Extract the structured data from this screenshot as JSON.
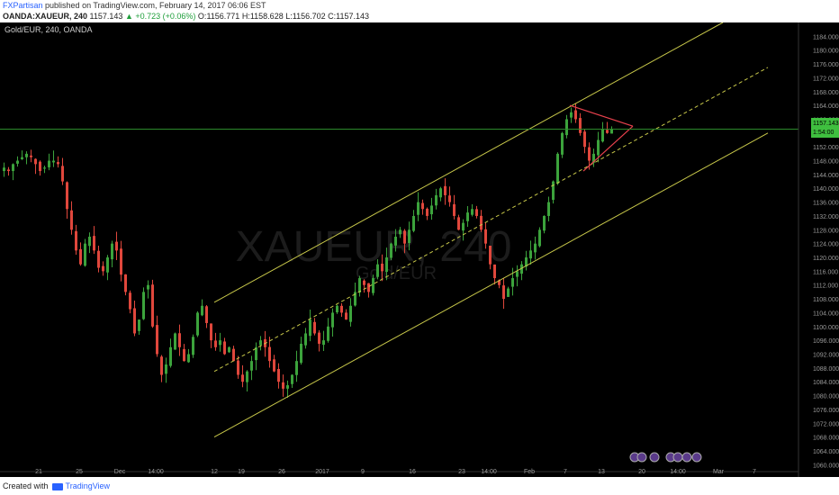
{
  "header": {
    "author": "FXPartisan",
    "published_text": " published on TradingView.com, February 14, 2017 06:06 EST",
    "symbol": "OANDA:XAUEUR, 240",
    "last_price": "1157.143",
    "change": "▲ +0.723 (+0.06%)",
    "o_label": "O:",
    "o": "1156.771",
    "h_label": "H:",
    "h": "1158.628",
    "l_label": "L:",
    "l": "1156.702",
    "c_label": "C:",
    "c": "1157.143"
  },
  "chart_title": "Gold/EUR, 240, OANDA",
  "watermark": {
    "symbol": "XAUEUR, 240",
    "name": "Gold/EUR"
  },
  "colors": {
    "background": "#000000",
    "up_candle": "#3ca33c",
    "down_candle": "#e0473c",
    "channel": "#c8c84a",
    "triangle": "#e8414d",
    "price_line": "#2c8a2c",
    "price_tag": "#3fbf3f",
    "axis_text": "#9a9a9a"
  },
  "price_tag": {
    "price": "1157.143",
    "countdown": "1:54:00"
  },
  "chart_data": {
    "type": "candlestick",
    "title": "Gold/EUR, 240, OANDA",
    "xlabel": "",
    "ylabel": "",
    "ylim": [
      1058,
      1188
    ],
    "y_ticks": [
      1060,
      1064,
      1068,
      1072,
      1076,
      1080,
      1084,
      1088,
      1092,
      1096,
      1100,
      1104,
      1108,
      1112,
      1116,
      1120,
      1124,
      1128,
      1132,
      1136,
      1140,
      1144,
      1148,
      1152,
      1156,
      1160,
      1164,
      1168,
      1172,
      1176,
      1180,
      1184
    ],
    "x_ticks": [
      {
        "label": "21",
        "t": 8
      },
      {
        "label": "25",
        "t": 17
      },
      {
        "label": "Dec",
        "t": 26
      },
      {
        "label": "14:00",
        "t": 34
      },
      {
        "label": "12",
        "t": 47
      },
      {
        "label": "19",
        "t": 53
      },
      {
        "label": "26",
        "t": 62
      },
      {
        "label": "2017",
        "t": 71
      },
      {
        "label": "9",
        "t": 80
      },
      {
        "label": "16",
        "t": 91
      },
      {
        "label": "23",
        "t": 102
      },
      {
        "label": "14:00",
        "t": 108
      },
      {
        "label": "Feb",
        "t": 117
      },
      {
        "label": "7",
        "t": 125
      },
      {
        "label": "13",
        "t": 133
      },
      {
        "label": "20",
        "t": 142
      },
      {
        "label": "14:00",
        "t": 150
      },
      {
        "label": "Mar",
        "t": 159
      },
      {
        "label": "7",
        "t": 167
      }
    ],
    "last_price": 1157.143,
    "closes": [
      1146,
      1145,
      1147,
      1148,
      1149,
      1150,
      1149,
      1147,
      1145,
      1146,
      1148,
      1148,
      1147,
      1142,
      1134,
      1128,
      1122,
      1118,
      1124,
      1126,
      1122,
      1117,
      1116,
      1120,
      1124,
      1122,
      1115,
      1110,
      1105,
      1098,
      1102,
      1110,
      1112,
      1100,
      1092,
      1086,
      1089,
      1094,
      1098,
      1094,
      1090,
      1092,
      1097,
      1104,
      1106,
      1101,
      1096,
      1094,
      1096,
      1092,
      1094,
      1090,
      1086,
      1084,
      1087,
      1090,
      1094,
      1096,
      1094,
      1090,
      1087,
      1084,
      1082,
      1083,
      1086,
      1090,
      1095,
      1098,
      1102,
      1098,
      1095,
      1096,
      1100,
      1104,
      1106,
      1104,
      1102,
      1106,
      1110,
      1114,
      1112,
      1110,
      1114,
      1118,
      1116,
      1120,
      1124,
      1126,
      1128,
      1124,
      1128,
      1132,
      1136,
      1134,
      1132,
      1135,
      1138,
      1140,
      1138,
      1136,
      1132,
      1128,
      1130,
      1133,
      1134,
      1132,
      1128,
      1124,
      1118,
      1114,
      1112,
      1108,
      1111,
      1114,
      1116,
      1118,
      1120,
      1122,
      1124,
      1128,
      1132,
      1136,
      1142,
      1150,
      1156,
      1160,
      1162,
      1160,
      1156,
      1152,
      1148,
      1150,
      1154,
      1157,
      1156,
      1157.1
    ],
    "channel": {
      "upper": [
        {
          "t": 47,
          "p": 1107
        },
        {
          "t": 160,
          "p": 1188
        }
      ],
      "middle": [
        {
          "t": 47,
          "p": 1087
        },
        {
          "t": 170,
          "p": 1175
        }
      ],
      "lower": [
        {
          "t": 47,
          "p": 1068
        },
        {
          "t": 170,
          "p": 1156
        }
      ]
    },
    "triangle": [
      {
        "from": {
          "t": 126,
          "p": 1164
        },
        "to": {
          "t": 140,
          "p": 1158
        }
      },
      {
        "from": {
          "t": 129,
          "p": 1145
        },
        "to": {
          "t": 140,
          "p": 1158
        }
      }
    ]
  }
}
